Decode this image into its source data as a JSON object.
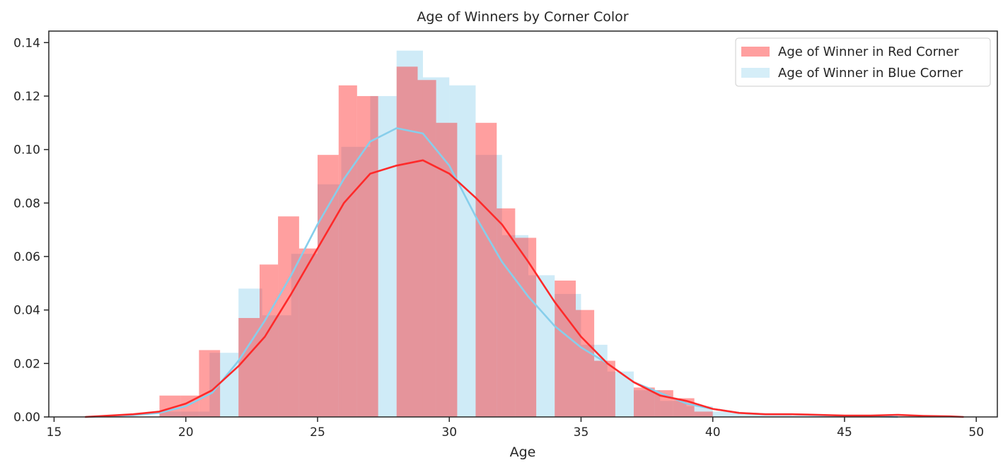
{
  "chart_data": {
    "type": "bar",
    "title": "Age of Winners by Corner Color",
    "xlabel": "Age",
    "ylabel": "",
    "xlim": [
      14.8,
      50.8
    ],
    "ylim": [
      0,
      0.1443
    ],
    "xticks": [
      "15",
      "20",
      "25",
      "30",
      "35",
      "40",
      "45",
      "50"
    ],
    "yticks": [
      "0.00",
      "0.02",
      "0.04",
      "0.06",
      "0.08",
      "0.10",
      "0.12",
      "0.14"
    ],
    "grid": false,
    "legend_position": "top-right",
    "series": [
      {
        "name": "Age of Winner in Red Corner",
        "color": "#ff2a2a",
        "bin_edges": [
          19.0,
          19.8,
          20.5,
          21.3,
          22.0,
          22.8,
          23.5,
          24.3,
          25.0,
          25.8,
          26.5,
          27.3,
          28.0,
          28.8,
          29.5,
          30.3,
          31.0,
          31.8,
          32.5,
          33.3,
          34.0,
          34.8,
          35.5,
          36.3,
          37.0,
          37.8,
          38.5,
          39.3,
          40.0,
          40.8,
          41.5,
          42.3,
          43.0,
          43.8,
          44.5,
          45.3,
          46.0,
          46.8,
          47.5
        ],
        "density": [
          0.008,
          0.008,
          0.025,
          0.0,
          0.037,
          0.057,
          0.075,
          0.063,
          0.098,
          0.124,
          0.12,
          0.0,
          0.131,
          0.126,
          0.11,
          0.0,
          0.11,
          0.078,
          0.067,
          0.0,
          0.051,
          0.04,
          0.021,
          0.0,
          0.011,
          0.01,
          0.007,
          0.002,
          0.0,
          0.0,
          0.0,
          0.0,
          0.0,
          0.0,
          0.0,
          0.0,
          0.0,
          0.0
        ],
        "kde_x": [
          16.2,
          18,
          19,
          20,
          21,
          22,
          23,
          24,
          25,
          26,
          27,
          28,
          29,
          30,
          31,
          32,
          33,
          34,
          35,
          36,
          37,
          38,
          39,
          40,
          41,
          42,
          43,
          44,
          45,
          46,
          47,
          48,
          49,
          49.5
        ],
        "kde_y": [
          0.0,
          0.001,
          0.002,
          0.005,
          0.01,
          0.019,
          0.03,
          0.046,
          0.063,
          0.08,
          0.091,
          0.094,
          0.096,
          0.091,
          0.082,
          0.072,
          0.058,
          0.043,
          0.03,
          0.02,
          0.013,
          0.008,
          0.006,
          0.003,
          0.0015,
          0.001,
          0.001,
          0.0008,
          0.0005,
          0.0005,
          0.0008,
          0.0004,
          0.0002,
          0.0
        ]
      },
      {
        "name": "Age of Winner in Blue Corner",
        "color": "#87ceeb",
        "bin_edges": [
          19.0,
          20.9,
          22.0,
          22.9,
          24.0,
          25.0,
          25.9,
          27.0,
          28.0,
          29.0,
          30.0,
          31.0,
          32.0,
          33.0,
          34.0,
          35.0,
          36.0,
          37.0,
          38.0,
          39.0,
          40.0,
          41.0,
          42.0,
          43.0,
          44.0,
          45.0,
          46.0,
          47.0
        ],
        "density": [
          0.002,
          0.024,
          0.048,
          0.038,
          0.061,
          0.087,
          0.101,
          0.12,
          0.137,
          0.127,
          0.124,
          0.098,
          0.068,
          0.053,
          0.046,
          0.027,
          0.017,
          0.01,
          0.006,
          0.004,
          0.002,
          0.001,
          0.001,
          0.0005,
          0.0005,
          0.0,
          0.0
        ],
        "kde_x": [
          16.2,
          18,
          19,
          20,
          21,
          22,
          23,
          24,
          25,
          26,
          27,
          28,
          29,
          30,
          31,
          32,
          33,
          34,
          35,
          36,
          37,
          38,
          39,
          40,
          41,
          42,
          43,
          44,
          45,
          46,
          47
        ],
        "kde_y": [
          0.0,
          0.0007,
          0.0015,
          0.004,
          0.009,
          0.021,
          0.036,
          0.053,
          0.072,
          0.089,
          0.103,
          0.108,
          0.106,
          0.094,
          0.075,
          0.058,
          0.045,
          0.034,
          0.026,
          0.02,
          0.013,
          0.009,
          0.005,
          0.003,
          0.0015,
          0.001,
          0.001,
          0.0007,
          0.0004,
          0.0003,
          0.0
        ]
      }
    ]
  }
}
